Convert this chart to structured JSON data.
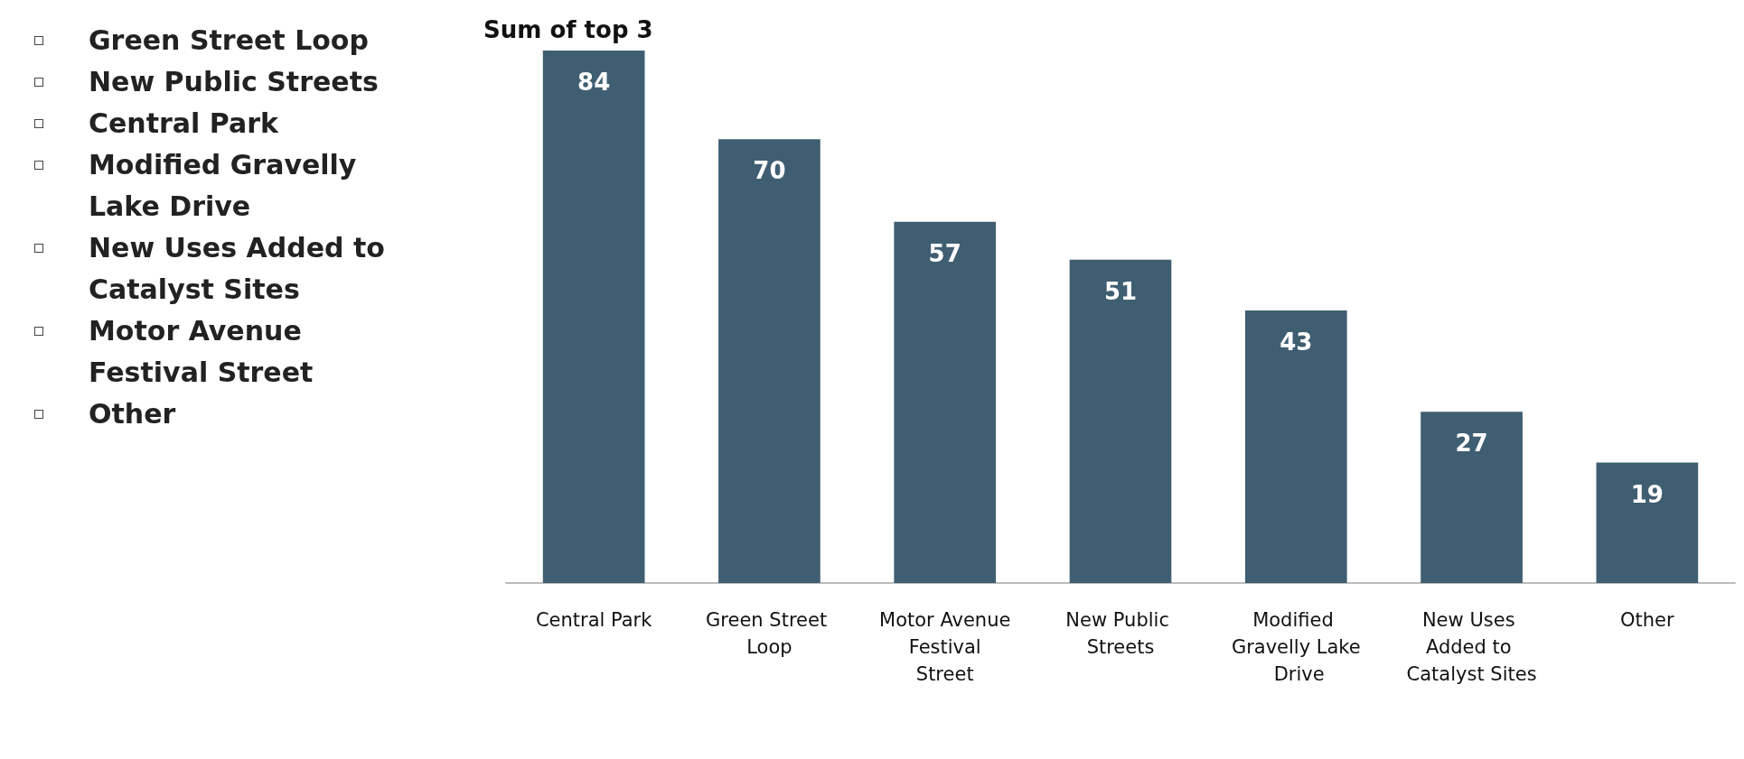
{
  "chart_data": {
    "type": "bar",
    "title": "Sum of top 3",
    "categories": [
      "Central Park",
      "Green Street Loop",
      "Motor Avenue Festival Street",
      "New Public Streets",
      "Modified Gravelly Lake Drive",
      "New Uses Added to Catalyst Sites",
      "Other"
    ],
    "values": [
      84,
      70,
      57,
      51,
      43,
      27,
      19
    ],
    "color": "#405e72",
    "data_labels": true,
    "grid": false,
    "annotations": [
      "Green Street Loop",
      "New Public Streets",
      "Central Park",
      "Modified Gravelly Lake Drive",
      "New Uses Added to Catalyst Sites",
      "Motor Avenue Festival Street",
      "Other"
    ]
  }
}
